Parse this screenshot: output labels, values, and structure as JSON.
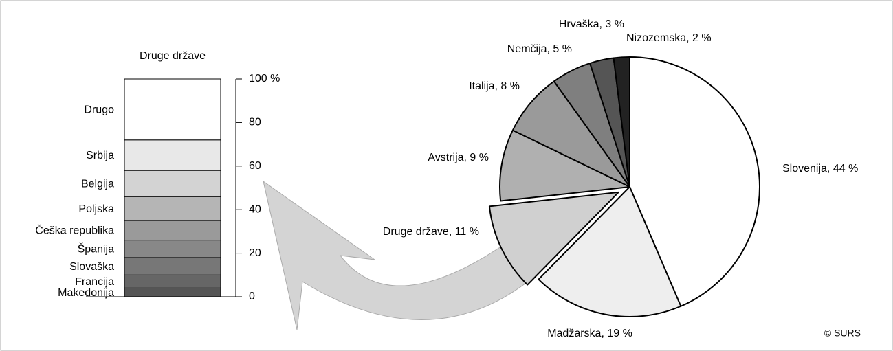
{
  "chart_data": [
    {
      "type": "pie",
      "values": [
        44,
        19,
        11,
        9,
        8,
        5,
        3,
        2
      ],
      "value_labels": [
        "Slovenija, 44 %",
        "Madžarska, 19 %",
        "Druge države, 11 %",
        "Avstrija, 9 %",
        "Italija, 8 %",
        "Nemčija, 5 %",
        "Hrvaška, 3 %",
        "Nizozemska, 2 %"
      ],
      "colors": [
        "#ffffff",
        "#eeeeee",
        "#d0d0d0",
        "#b0b0b0",
        "#9a9a9a",
        "#7f7f7f",
        "#555555",
        "#222222"
      ],
      "source": "© SURS"
    },
    {
      "type": "stacked_column",
      "title": "Druge države",
      "categories": [
        "Makedonija",
        "Francija",
        "Slovaška",
        "Španija",
        "Češka republika",
        "Poljska",
        "Belgija",
        "Srbija",
        "Drugo"
      ],
      "values": [
        4,
        6,
        8,
        8,
        9,
        11,
        12,
        14,
        28
      ],
      "colors": [
        "#555555",
        "#666666",
        "#777777",
        "#888888",
        "#9a9a9a",
        "#b5b5b5",
        "#d3d3d3",
        "#e8e8e8",
        "#ffffff"
      ],
      "ylim": [
        0,
        100
      ],
      "yticks": [
        0,
        20,
        40,
        60,
        80,
        {
          "value": 100,
          "label": "100 %"
        }
      ]
    }
  ]
}
